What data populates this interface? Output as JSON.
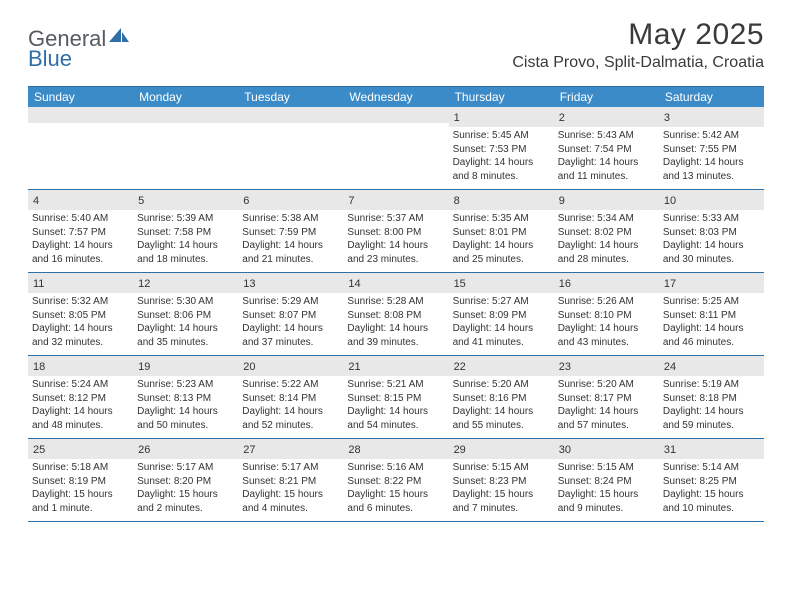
{
  "logo": {
    "general": "General",
    "blue": "Blue"
  },
  "title": "May 2025",
  "location": "Cista Provo, Split-Dalmatia, Croatia",
  "colors": {
    "headerBlue": "#3b8bc9",
    "borderBlue": "#2f6fa8",
    "stripGray": "#e8e8e8",
    "text": "#333333",
    "logoGray": "#555b61",
    "logoBlue": "#2f6fa8"
  },
  "weekdays": [
    "Sunday",
    "Monday",
    "Tuesday",
    "Wednesday",
    "Thursday",
    "Friday",
    "Saturday"
  ],
  "weeks": [
    [
      null,
      null,
      null,
      null,
      {
        "n": "1",
        "sr": "5:45 AM",
        "ss": "7:53 PM",
        "dl": "14 hours and 8 minutes."
      },
      {
        "n": "2",
        "sr": "5:43 AM",
        "ss": "7:54 PM",
        "dl": "14 hours and 11 minutes."
      },
      {
        "n": "3",
        "sr": "5:42 AM",
        "ss": "7:55 PM",
        "dl": "14 hours and 13 minutes."
      }
    ],
    [
      {
        "n": "4",
        "sr": "5:40 AM",
        "ss": "7:57 PM",
        "dl": "14 hours and 16 minutes."
      },
      {
        "n": "5",
        "sr": "5:39 AM",
        "ss": "7:58 PM",
        "dl": "14 hours and 18 minutes."
      },
      {
        "n": "6",
        "sr": "5:38 AM",
        "ss": "7:59 PM",
        "dl": "14 hours and 21 minutes."
      },
      {
        "n": "7",
        "sr": "5:37 AM",
        "ss": "8:00 PM",
        "dl": "14 hours and 23 minutes."
      },
      {
        "n": "8",
        "sr": "5:35 AM",
        "ss": "8:01 PM",
        "dl": "14 hours and 25 minutes."
      },
      {
        "n": "9",
        "sr": "5:34 AM",
        "ss": "8:02 PM",
        "dl": "14 hours and 28 minutes."
      },
      {
        "n": "10",
        "sr": "5:33 AM",
        "ss": "8:03 PM",
        "dl": "14 hours and 30 minutes."
      }
    ],
    [
      {
        "n": "11",
        "sr": "5:32 AM",
        "ss": "8:05 PM",
        "dl": "14 hours and 32 minutes."
      },
      {
        "n": "12",
        "sr": "5:30 AM",
        "ss": "8:06 PM",
        "dl": "14 hours and 35 minutes."
      },
      {
        "n": "13",
        "sr": "5:29 AM",
        "ss": "8:07 PM",
        "dl": "14 hours and 37 minutes."
      },
      {
        "n": "14",
        "sr": "5:28 AM",
        "ss": "8:08 PM",
        "dl": "14 hours and 39 minutes."
      },
      {
        "n": "15",
        "sr": "5:27 AM",
        "ss": "8:09 PM",
        "dl": "14 hours and 41 minutes."
      },
      {
        "n": "16",
        "sr": "5:26 AM",
        "ss": "8:10 PM",
        "dl": "14 hours and 43 minutes."
      },
      {
        "n": "17",
        "sr": "5:25 AM",
        "ss": "8:11 PM",
        "dl": "14 hours and 46 minutes."
      }
    ],
    [
      {
        "n": "18",
        "sr": "5:24 AM",
        "ss": "8:12 PM",
        "dl": "14 hours and 48 minutes."
      },
      {
        "n": "19",
        "sr": "5:23 AM",
        "ss": "8:13 PM",
        "dl": "14 hours and 50 minutes."
      },
      {
        "n": "20",
        "sr": "5:22 AM",
        "ss": "8:14 PM",
        "dl": "14 hours and 52 minutes."
      },
      {
        "n": "21",
        "sr": "5:21 AM",
        "ss": "8:15 PM",
        "dl": "14 hours and 54 minutes."
      },
      {
        "n": "22",
        "sr": "5:20 AM",
        "ss": "8:16 PM",
        "dl": "14 hours and 55 minutes."
      },
      {
        "n": "23",
        "sr": "5:20 AM",
        "ss": "8:17 PM",
        "dl": "14 hours and 57 minutes."
      },
      {
        "n": "24",
        "sr": "5:19 AM",
        "ss": "8:18 PM",
        "dl": "14 hours and 59 minutes."
      }
    ],
    [
      {
        "n": "25",
        "sr": "5:18 AM",
        "ss": "8:19 PM",
        "dl": "15 hours and 1 minute."
      },
      {
        "n": "26",
        "sr": "5:17 AM",
        "ss": "8:20 PM",
        "dl": "15 hours and 2 minutes."
      },
      {
        "n": "27",
        "sr": "5:17 AM",
        "ss": "8:21 PM",
        "dl": "15 hours and 4 minutes."
      },
      {
        "n": "28",
        "sr": "5:16 AM",
        "ss": "8:22 PM",
        "dl": "15 hours and 6 minutes."
      },
      {
        "n": "29",
        "sr": "5:15 AM",
        "ss": "8:23 PM",
        "dl": "15 hours and 7 minutes."
      },
      {
        "n": "30",
        "sr": "5:15 AM",
        "ss": "8:24 PM",
        "dl": "15 hours and 9 minutes."
      },
      {
        "n": "31",
        "sr": "5:14 AM",
        "ss": "8:25 PM",
        "dl": "15 hours and 10 minutes."
      }
    ]
  ],
  "labels": {
    "sunrise": "Sunrise: ",
    "sunset": "Sunset: ",
    "daylight": "Daylight: "
  }
}
